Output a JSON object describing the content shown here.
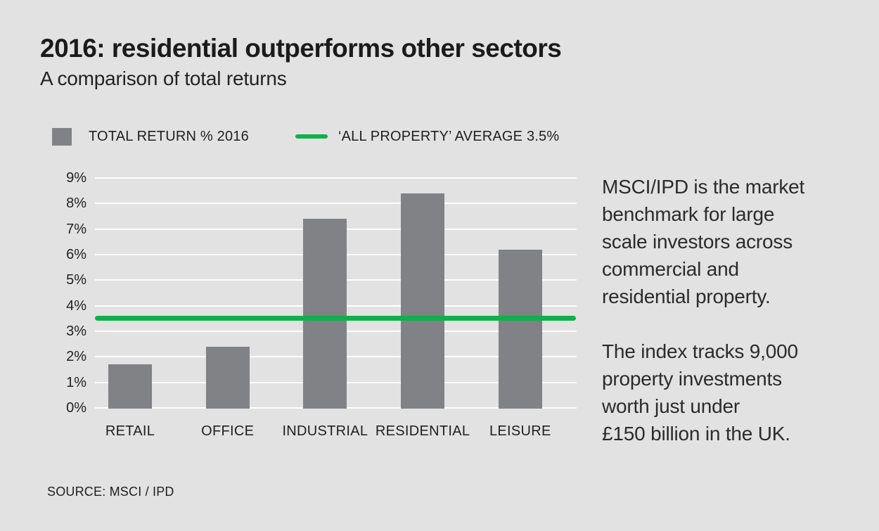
{
  "chart_data": {
    "type": "bar",
    "title": "2016: residential outperforms other sectors",
    "subtitle": "A comparison of total returns",
    "categories": [
      "RETAIL",
      "OFFICE",
      "INDUSTRIAL",
      "RESIDENTIAL",
      "LEISURE"
    ],
    "series": [
      {
        "name": "TOTAL RETURN % 2016",
        "values": [
          1.7,
          2.4,
          7.4,
          8.4,
          6.2
        ]
      }
    ],
    "reference_line": {
      "name": "‘ALL PROPERTY’ AVERAGE 3.5%",
      "value": 3.5
    },
    "ylabel": "",
    "xlabel": "",
    "ylim": [
      0,
      9
    ],
    "ytick_step": 1,
    "ytick_suffix": "%",
    "grid": true,
    "legend_position": "top-left",
    "source": "SOURCE: MSCI / IPD",
    "colors": {
      "background": "#e2e2e2",
      "bar": "#808285",
      "line": "#0db14b",
      "grid": "#ffffff"
    }
  },
  "side_text": {
    "paragraph1": "MSCI/IPD is the market\nbenchmark for large\nscale investors across\ncommercial and\nresidential property.",
    "paragraph2": "The index tracks 9,000\nproperty investments\nworth just under\n£150 billion in the UK."
  }
}
